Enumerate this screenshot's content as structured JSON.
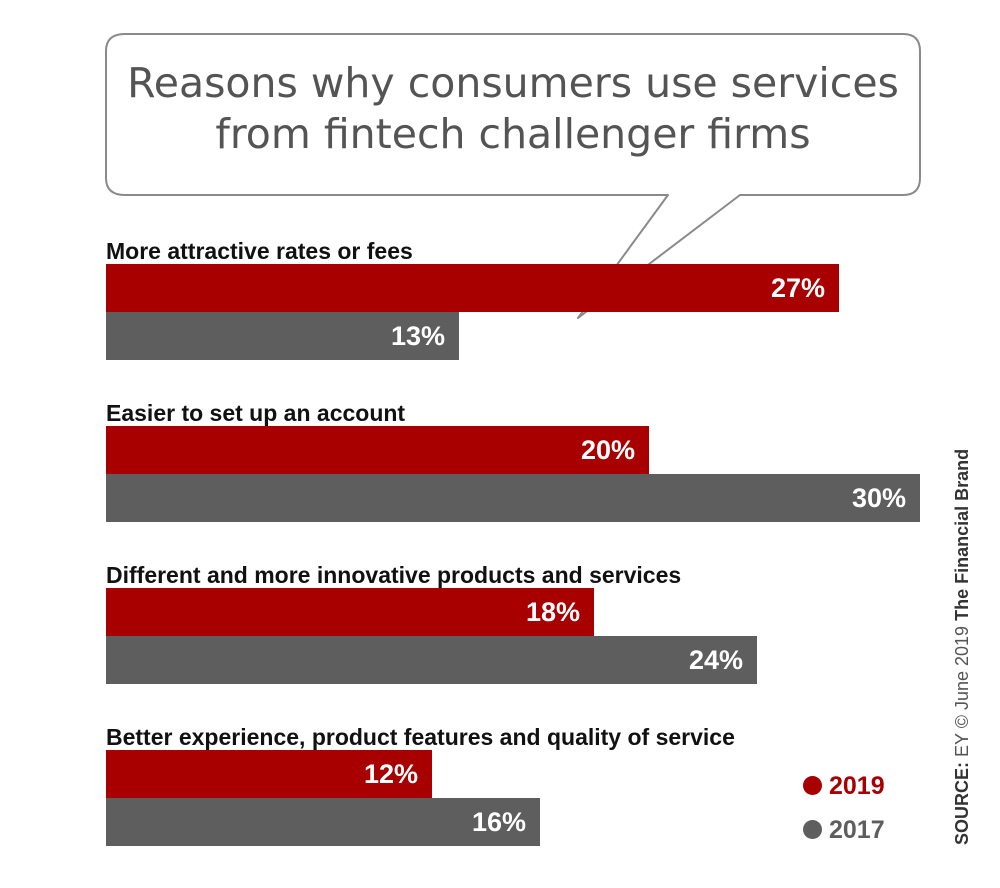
{
  "chart_data": {
    "type": "bar",
    "orientation": "horizontal",
    "title": "Reasons why consumers use services from fintech challenger firms",
    "title_lines": [
      "Reasons why consumers use services",
      "from fintech challenger firms"
    ],
    "categories": [
      "More attractive rates or fees",
      "Easier to set up an account",
      "Different and more innovative products and services",
      "Better experience, product features and quality of service"
    ],
    "series": [
      {
        "name": "2019",
        "color": "#a80000",
        "values": [
          27,
          20,
          18,
          12
        ],
        "labels": [
          "27%",
          "20%",
          "18%",
          "12%"
        ]
      },
      {
        "name": "2017",
        "color": "#5e5e5e",
        "values": [
          13,
          30,
          24,
          16
        ],
        "labels": [
          "13%",
          "30%",
          "24%",
          "16%"
        ]
      }
    ],
    "xlim": [
      0,
      30
    ],
    "unit": "%",
    "grid": false,
    "legend_position": "bottom-right"
  },
  "source": {
    "prefix": "SOURCE:",
    "text": "EY © June 2019",
    "brand": "The Financial Brand"
  }
}
